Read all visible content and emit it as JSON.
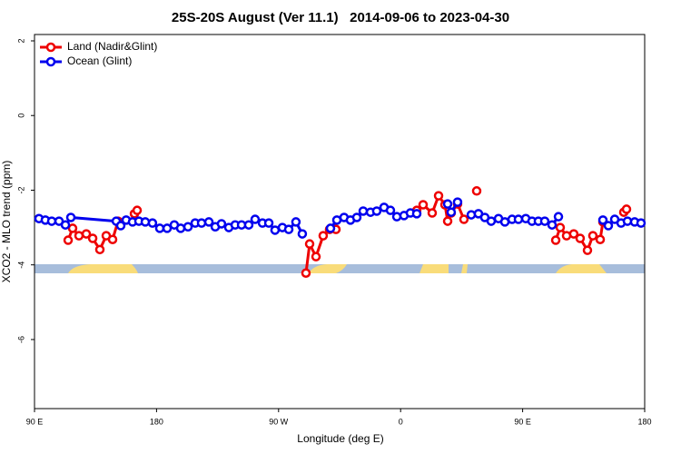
{
  "chart_data": {
    "type": "line",
    "title": "25S-20S August (Ver 11.1)   2014-09-06 to 2023-04-30",
    "xlabel": "Longitude (deg E)",
    "ylabel": "XCO2 - MLO trend (ppm)",
    "xlim": [
      90,
      540
    ],
    "ylim": [
      -7.85,
      2.17
    ],
    "xticks": [
      {
        "value": 90,
        "label": "90 E"
      },
      {
        "value": 180,
        "label": "180"
      },
      {
        "value": 270,
        "label": "90 W"
      },
      {
        "value": 360,
        "label": "0"
      },
      {
        "value": 450,
        "label": "90 E"
      },
      {
        "value": 540,
        "label": "180"
      }
    ],
    "yticks": [
      -6,
      -4,
      -2,
      0,
      2
    ],
    "legend": "upper left",
    "series": [
      {
        "name": "Land (Nadir&Glint)",
        "color": "#ee0000",
        "x": [
          114.8,
          118.1,
          122.8,
          128.2,
          132.9,
          138.2,
          142.9,
          147.6,
          151.6,
          null,
          163.7,
          165.7,
          null,
          290.2,
          292.9,
          297.6,
          302.9,
          307.6,
          312.3,
          null,
          371.9,
          376.6,
          383.3,
          388.0,
          392.7,
          394.7,
          397.3,
          402.0,
          406.7,
          null,
          416.1,
          null,
          474.4,
          477.7,
          482.4,
          487.7,
          492.4,
          497.8,
          501.8,
          507.2,
          509.2,
          null,
          524.6,
          526.6
        ],
        "values": [
          -3.34,
          -3.02,
          -3.22,
          -3.17,
          -3.29,
          -3.59,
          -3.22,
          -3.32,
          -2.83,
          null,
          -2.63,
          -2.54,
          null,
          -4.22,
          -3.44,
          -3.78,
          -3.22,
          -3.05,
          -3.05,
          null,
          -2.54,
          -2.39,
          -2.61,
          -2.15,
          -2.39,
          -2.83,
          -2.61,
          -2.37,
          -2.78,
          null,
          -2.02,
          null,
          -3.34,
          -3.0,
          -3.22,
          -3.17,
          -3.29,
          -3.61,
          -3.22,
          -3.32,
          -2.85,
          null,
          -2.59,
          -2.51
        ]
      },
      {
        "name": "Ocean (Glint)",
        "color": "#0000ee",
        "x": [
          93.3,
          98.0,
          102.7,
          108.1,
          112.8,
          116.8,
          150.3,
          153.6,
          157.6,
          162.3,
          167.0,
          171.7,
          177.0,
          182.4,
          187.8,
          193.1,
          197.8,
          203.2,
          208.5,
          213.2,
          218.6,
          223.3,
          227.9,
          233.3,
          238.0,
          242.7,
          248.0,
          252.7,
          258.1,
          262.8,
          267.4,
          272.8,
          277.5,
          282.8,
          287.5,
          null,
          308.3,
          313.0,
          318.3,
          323.0,
          327.7,
          332.4,
          337.8,
          342.4,
          347.8,
          352.5,
          357.2,
          362.5,
          367.2,
          371.9,
          null,
          394.7,
          397.3,
          402.0,
          null,
          412.1,
          417.4,
          422.1,
          426.8,
          432.2,
          436.9,
          442.2,
          446.9,
          452.3,
          456.9,
          461.6,
          466.3,
          471.7,
          476.4,
          null,
          509.2,
          513.2,
          517.9,
          522.6,
          527.3,
          532.6,
          537.3
        ],
        "values": [
          -2.76,
          -2.8,
          -2.83,
          -2.83,
          -2.93,
          -2.73,
          -2.83,
          -2.95,
          -2.8,
          -2.85,
          -2.83,
          -2.85,
          -2.88,
          -3.02,
          -3.02,
          -2.93,
          -3.02,
          -2.98,
          -2.88,
          -2.88,
          -2.85,
          -2.98,
          -2.9,
          -3.0,
          -2.93,
          -2.93,
          -2.93,
          -2.78,
          -2.88,
          -2.88,
          -3.07,
          -3.0,
          -3.05,
          -2.85,
          -3.17,
          null,
          -3.02,
          -2.8,
          -2.73,
          -2.8,
          -2.73,
          -2.56,
          -2.59,
          -2.56,
          -2.46,
          -2.54,
          -2.71,
          -2.68,
          -2.61,
          -2.63,
          null,
          -2.37,
          -2.59,
          -2.32,
          null,
          -2.66,
          -2.63,
          -2.73,
          -2.83,
          -2.76,
          -2.85,
          -2.78,
          -2.78,
          -2.76,
          -2.83,
          -2.83,
          -2.83,
          -2.93,
          -2.71,
          null,
          -2.8,
          -2.95,
          -2.78,
          -2.88,
          -2.83,
          -2.85,
          -2.88
        ]
      }
    ]
  }
}
